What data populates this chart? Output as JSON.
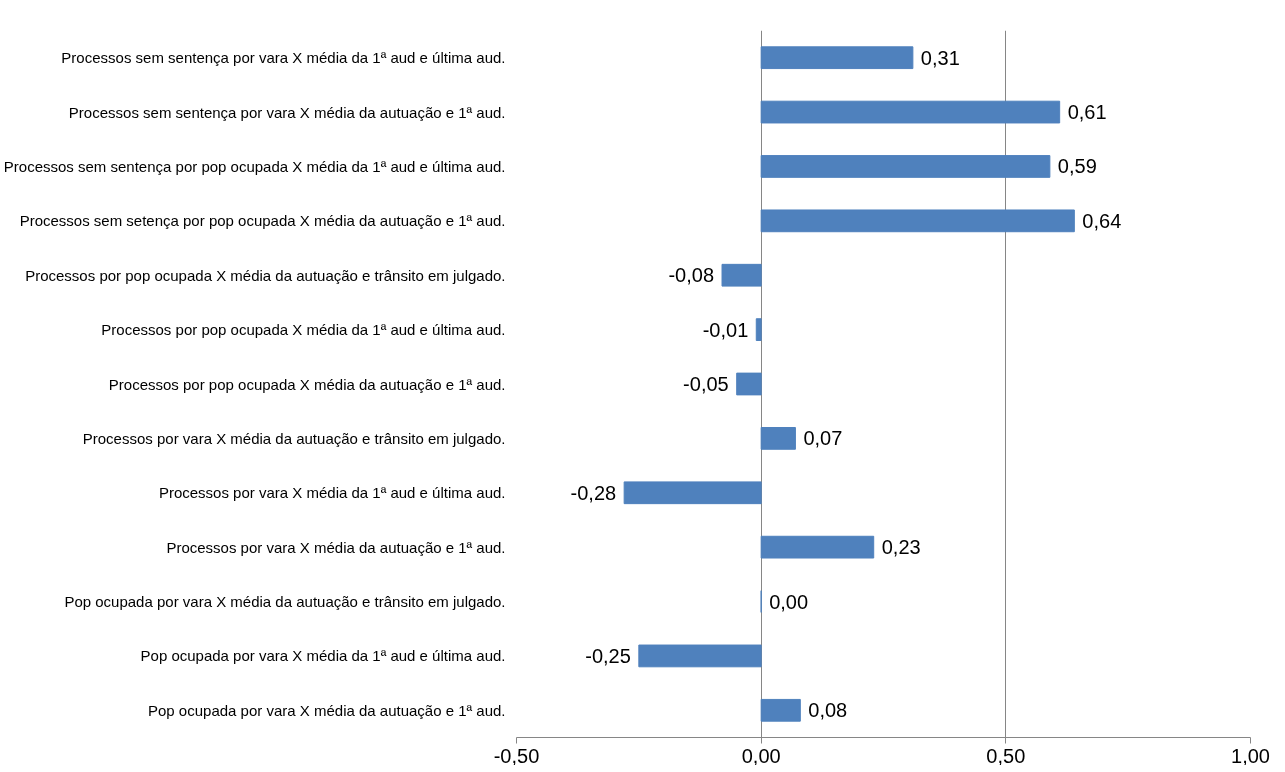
{
  "chart_data": {
    "type": "bar",
    "orientation": "horizontal",
    "categories": [
      "Processos sem sentença por vara X média da 1ª aud e última aud.",
      "Processos sem sentença por vara X média da autuação e 1ª aud.",
      "Processos sem sentença por pop ocupada X média da 1ª aud e última aud.",
      "Processos sem setença por pop ocupada X média da autuação e 1ª aud.",
      "Processos por pop ocupada X média da autuação e trânsito em julgado.",
      "Processos por pop ocupada X média da 1ª aud e última aud.",
      "Processos por pop ocupada X média da autuação e 1ª aud.",
      "Processos por vara X média da autuação e trânsito em julgado.",
      "Processos por vara X média da 1ª aud e última aud.",
      "Processos por vara X média da autuação e 1ª aud.",
      "Pop ocupada por vara X média da autuação e trânsito em julgado.",
      "Pop ocupada por vara X média da 1ª aud e última aud.",
      "Pop ocupada por vara X média da autuação e 1ª aud."
    ],
    "values": [
      0.31,
      0.61,
      0.59,
      0.64,
      -0.08,
      -0.01,
      -0.05,
      0.07,
      -0.28,
      0.23,
      0.0,
      -0.25,
      0.08
    ],
    "value_labels": [
      "0,31",
      "0,61",
      "0,59",
      "0,64",
      "-0,08",
      "-0,01",
      "-0,05",
      "0,07",
      "-0,28",
      "0,23",
      "0,00",
      "-0,25",
      "0,08"
    ],
    "color": "#4f81bd",
    "xlim": [
      -0.5,
      1.0
    ],
    "xticks": [
      {
        "value": -0.5,
        "label": "-0,50"
      },
      {
        "value": 0,
        "label": "0,00"
      },
      {
        "value": 0.5,
        "label": "0,50"
      },
      {
        "value": 1.0,
        "label": "1,00"
      }
    ],
    "grid": "x"
  }
}
